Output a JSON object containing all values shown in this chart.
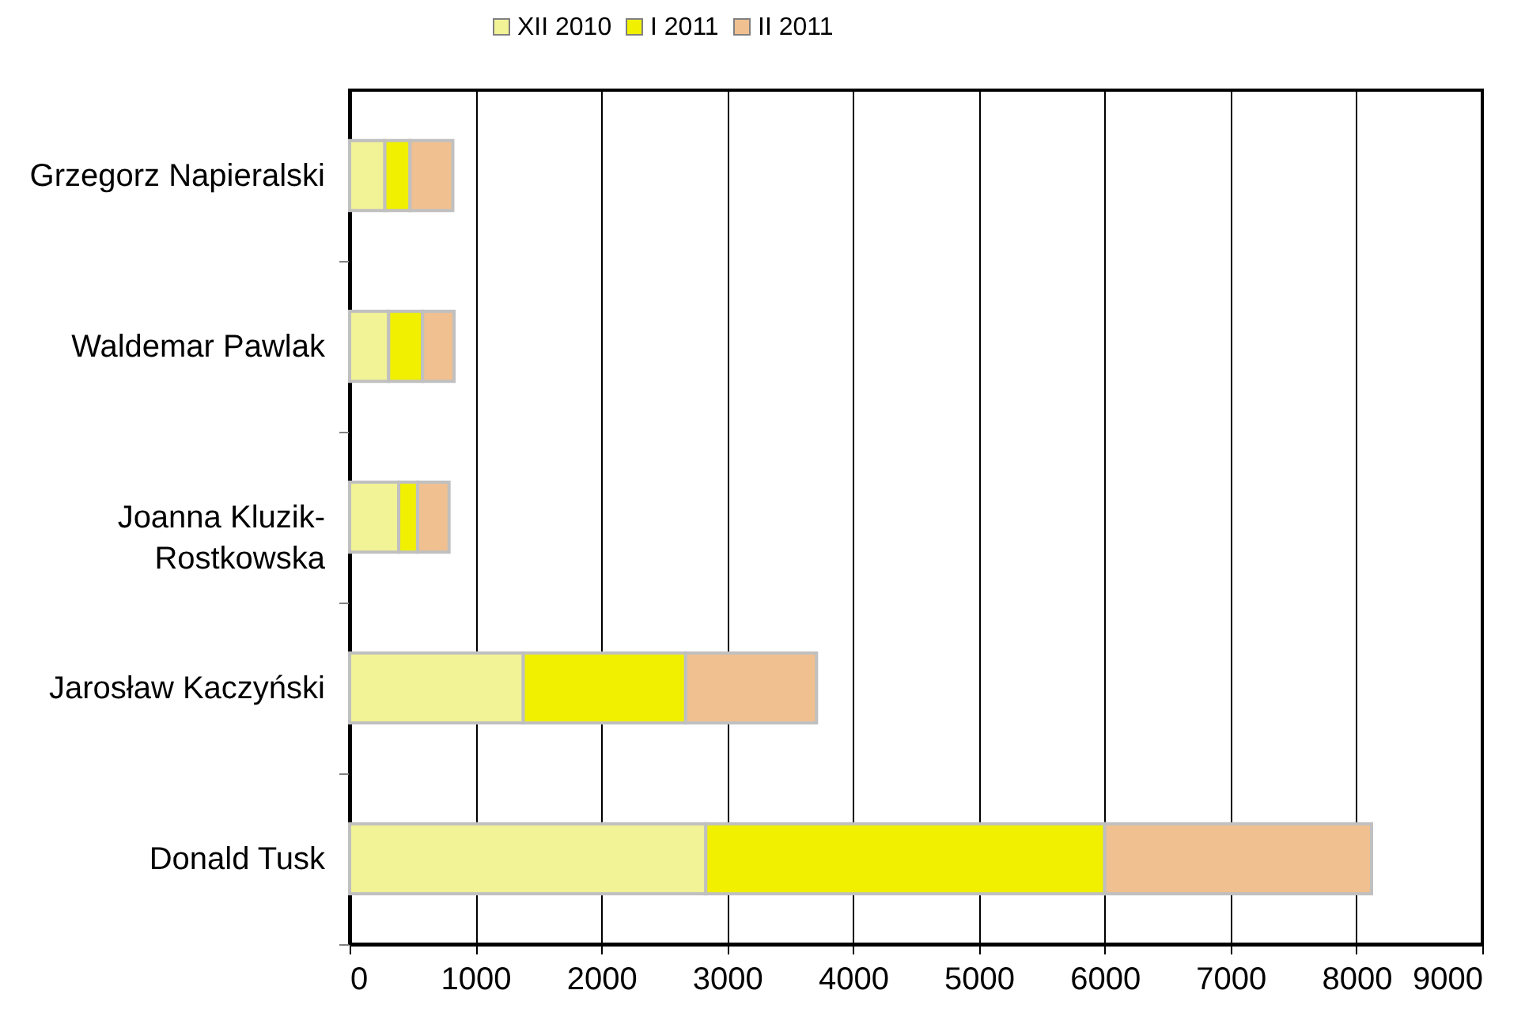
{
  "chart_data": {
    "type": "bar",
    "orientation": "horizontal",
    "stacked": true,
    "categories": [
      "Grzegorz Napieralski",
      "Waldemar Pawlak",
      "Joanna Kluzik-Rostkowska",
      "Jarosław Kaczyński",
      "Donald Tusk"
    ],
    "series": [
      {
        "name": "XII 2010",
        "color": "#f2f296",
        "values": [
          280,
          310,
          390,
          1380,
          2830
        ]
      },
      {
        "name": "I 2011",
        "color": "#f0f000",
        "values": [
          200,
          270,
          150,
          1290,
          3170
        ]
      },
      {
        "name": "II 2011",
        "color": "#f0c090",
        "values": [
          340,
          250,
          250,
          1040,
          2120
        ]
      }
    ],
    "xlim": [
      0,
      9000
    ],
    "xticks": [
      0,
      1000,
      2000,
      3000,
      4000,
      5000,
      6000,
      7000,
      8000,
      9000
    ],
    "grid": "x",
    "legend": "top"
  }
}
